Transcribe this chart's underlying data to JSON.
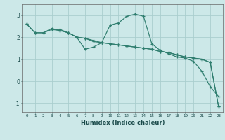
{
  "xlabel": "Humidex (Indice chaleur)",
  "bg_color": "#cce8e8",
  "line_color": "#2e7d6e",
  "grid_color": "#aacece",
  "xlim": [
    -0.5,
    23.5
  ],
  "ylim": [
    -1.4,
    3.5
  ],
  "xticks": [
    0,
    1,
    2,
    3,
    4,
    5,
    6,
    7,
    8,
    9,
    10,
    11,
    12,
    13,
    14,
    15,
    16,
    17,
    18,
    19,
    20,
    21,
    22,
    23
  ],
  "yticks": [
    -1,
    0,
    1,
    2,
    3
  ],
  "line1_x": [
    0,
    1,
    2,
    3,
    4,
    5,
    6,
    7,
    8,
    9,
    10,
    11,
    12,
    13,
    14,
    15,
    16,
    17,
    18,
    19,
    20,
    21,
    22,
    23
  ],
  "line1_y": [
    2.6,
    2.2,
    2.2,
    2.35,
    2.35,
    2.2,
    2.0,
    1.45,
    1.55,
    1.75,
    2.55,
    2.65,
    2.95,
    3.05,
    2.95,
    1.7,
    1.4,
    1.25,
    1.1,
    1.05,
    0.9,
    0.45,
    -0.25,
    -0.7
  ],
  "line2_x": [
    0,
    1,
    2,
    3,
    4,
    5,
    6,
    7,
    8,
    9,
    10,
    11,
    12,
    13,
    14,
    15,
    16,
    17,
    18,
    19,
    20,
    21,
    22,
    23
  ],
  "line2_y": [
    2.6,
    2.2,
    2.2,
    2.4,
    2.3,
    2.2,
    2.0,
    1.95,
    1.8,
    1.75,
    1.7,
    1.65,
    1.6,
    1.55,
    1.5,
    1.45,
    1.35,
    1.3,
    1.2,
    1.1,
    1.05,
    1.0,
    0.85,
    -1.15
  ],
  "line3_x": [
    3,
    4,
    5,
    6,
    7,
    8,
    9,
    10,
    11,
    12,
    13,
    14,
    15,
    16,
    17,
    18,
    19,
    20,
    21,
    22,
    23
  ],
  "line3_y": [
    2.35,
    2.3,
    2.2,
    2.0,
    1.95,
    1.85,
    1.75,
    1.7,
    1.65,
    1.6,
    1.55,
    1.5,
    1.45,
    1.35,
    1.3,
    1.2,
    1.1,
    1.05,
    1.0,
    0.85,
    -1.15
  ]
}
